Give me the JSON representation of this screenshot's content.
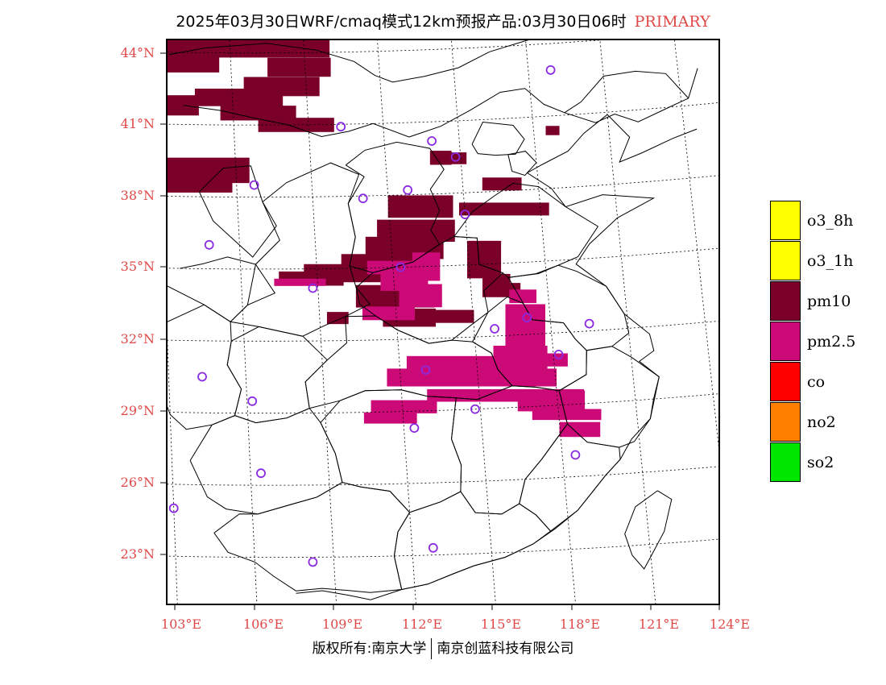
{
  "title": {
    "main": "2025年03月30日WRF/cmaq模式12km预报产品:03月30日06时",
    "tag": "PRIMARY"
  },
  "axes": {
    "lat_labels": [
      "44°N",
      "41°N",
      "38°N",
      "35°N",
      "32°N",
      "29°N",
      "26°N",
      "23°N"
    ],
    "lat_values": [
      44,
      41,
      38,
      35,
      32,
      29,
      26,
      23
    ],
    "lon_labels": [
      "103°E",
      "106°E",
      "109°E",
      "112°E",
      "115°E",
      "118°E",
      "121°E",
      "124°E"
    ],
    "lon_values": [
      103,
      106,
      109,
      112,
      115,
      118,
      121,
      124
    ]
  },
  "legend": [
    {
      "label": "o3_8h",
      "color": "#ffff00"
    },
    {
      "label": "o3_1h",
      "color": "#ffff00"
    },
    {
      "label": "pm10",
      "color": "#7a0029"
    },
    {
      "label": "pm2.5",
      "color": "#cc0a77"
    },
    {
      "label": "co",
      "color": "#ff0000"
    },
    {
      "label": "no2",
      "color": "#ff7f00"
    },
    {
      "label": "so2",
      "color": "#00e600"
    }
  ],
  "colors": {
    "pm10": "#7a0029",
    "pm25": "#cc0a77",
    "station": "#8a2be2",
    "label": "#e04848"
  },
  "stations": [
    {
      "lon": 118.9,
      "lat": 42.9
    },
    {
      "lon": 110.3,
      "lat": 40.9
    },
    {
      "lon": 113.9,
      "lat": 40.2
    },
    {
      "lon": 114.8,
      "lat": 39.5
    },
    {
      "lon": 106.7,
      "lat": 38.5
    },
    {
      "lon": 111.0,
      "lat": 37.9
    },
    {
      "lon": 112.8,
      "lat": 38.2
    },
    {
      "lon": 115.0,
      "lat": 37.1
    },
    {
      "lon": 104.8,
      "lat": 36.0
    },
    {
      "lon": 112.3,
      "lat": 35.0
    },
    {
      "lon": 108.8,
      "lat": 34.2
    },
    {
      "lon": 117.1,
      "lat": 32.7
    },
    {
      "lon": 115.8,
      "lat": 32.3
    },
    {
      "lon": 119.5,
      "lat": 32.3
    },
    {
      "lon": 118.2,
      "lat": 31.1
    },
    {
      "lon": 113.0,
      "lat": 30.7
    },
    {
      "lon": 104.3,
      "lat": 30.5
    },
    {
      "lon": 106.2,
      "lat": 29.5
    },
    {
      "lon": 114.8,
      "lat": 29.0
    },
    {
      "lon": 112.4,
      "lat": 28.3
    },
    {
      "lon": 118.5,
      "lat": 26.9
    },
    {
      "lon": 106.4,
      "lat": 26.5
    },
    {
      "lon": 103.0,
      "lat": 25.0
    },
    {
      "lon": 112.8,
      "lat": 23.3
    },
    {
      "lon": 108.2,
      "lat": 22.8
    }
  ],
  "footer": {
    "left": "版权所有:南京大学",
    "right": "南京创蓝科技有限公司"
  }
}
